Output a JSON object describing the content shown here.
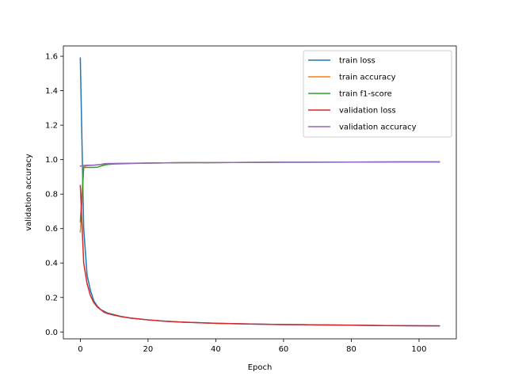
{
  "chart_data": {
    "type": "line",
    "title": "",
    "xlabel": "Epoch",
    "ylabel": "validation accuracy",
    "xlim": [
      -5,
      111
    ],
    "ylim": [
      -0.04,
      1.66
    ],
    "xticks": [
      0,
      20,
      40,
      60,
      80,
      100
    ],
    "yticks": [
      0.0,
      0.2,
      0.4,
      0.6,
      0.8,
      1.0,
      1.2,
      1.4,
      1.6
    ],
    "grid": false,
    "legend_position": "top-right",
    "series": [
      {
        "name": "train loss",
        "color": "#1f77b4",
        "x": [
          0,
          1,
          2,
          3,
          4,
          5,
          6,
          7,
          8,
          10,
          12,
          15,
          20,
          25,
          30,
          40,
          50,
          60,
          70,
          80,
          90,
          100,
          106
        ],
        "y": [
          1.59,
          0.6,
          0.33,
          0.24,
          0.18,
          0.15,
          0.13,
          0.12,
          0.11,
          0.1,
          0.09,
          0.08,
          0.07,
          0.062,
          0.057,
          0.05,
          0.046,
          0.043,
          0.041,
          0.039,
          0.037,
          0.036,
          0.035
        ]
      },
      {
        "name": "train accuracy",
        "color": "#ff7f0e",
        "x": [
          0,
          1,
          2,
          4,
          6,
          8,
          10,
          15,
          20,
          30,
          40,
          60,
          80,
          100,
          106
        ],
        "y": [
          0.58,
          0.96,
          0.965,
          0.968,
          0.972,
          0.975,
          0.977,
          0.979,
          0.98,
          0.982,
          0.983,
          0.985,
          0.986,
          0.987,
          0.987
        ]
      },
      {
        "name": "train f1-score",
        "color": "#2ca02c",
        "x": [
          0,
          1,
          2,
          4,
          5,
          6,
          7,
          8,
          10,
          15,
          20,
          30,
          40,
          60,
          80,
          100,
          106
        ],
        "y": [
          0.64,
          0.955,
          0.955,
          0.955,
          0.956,
          0.962,
          0.968,
          0.972,
          0.975,
          0.978,
          0.98,
          0.982,
          0.983,
          0.985,
          0.986,
          0.987,
          0.987
        ]
      },
      {
        "name": "validation loss",
        "color": "#d62728",
        "x": [
          0,
          1,
          2,
          3,
          4,
          5,
          6,
          7,
          8,
          10,
          12,
          15,
          20,
          25,
          30,
          40,
          50,
          60,
          70,
          80,
          90,
          100,
          106
        ],
        "y": [
          0.85,
          0.4,
          0.28,
          0.21,
          0.17,
          0.145,
          0.13,
          0.115,
          0.107,
          0.097,
          0.089,
          0.08,
          0.07,
          0.062,
          0.057,
          0.05,
          0.046,
          0.043,
          0.041,
          0.039,
          0.037,
          0.036,
          0.035
        ]
      },
      {
        "name": "validation accuracy",
        "color": "#9467bd",
        "x": [
          0,
          1,
          2,
          4,
          6,
          7,
          8,
          10,
          15,
          20,
          30,
          40,
          60,
          80,
          100,
          106
        ],
        "y": [
          0.962,
          0.966,
          0.968,
          0.968,
          0.972,
          0.976,
          0.978,
          0.978,
          0.979,
          0.98,
          0.982,
          0.983,
          0.985,
          0.986,
          0.987,
          0.987
        ]
      }
    ]
  }
}
